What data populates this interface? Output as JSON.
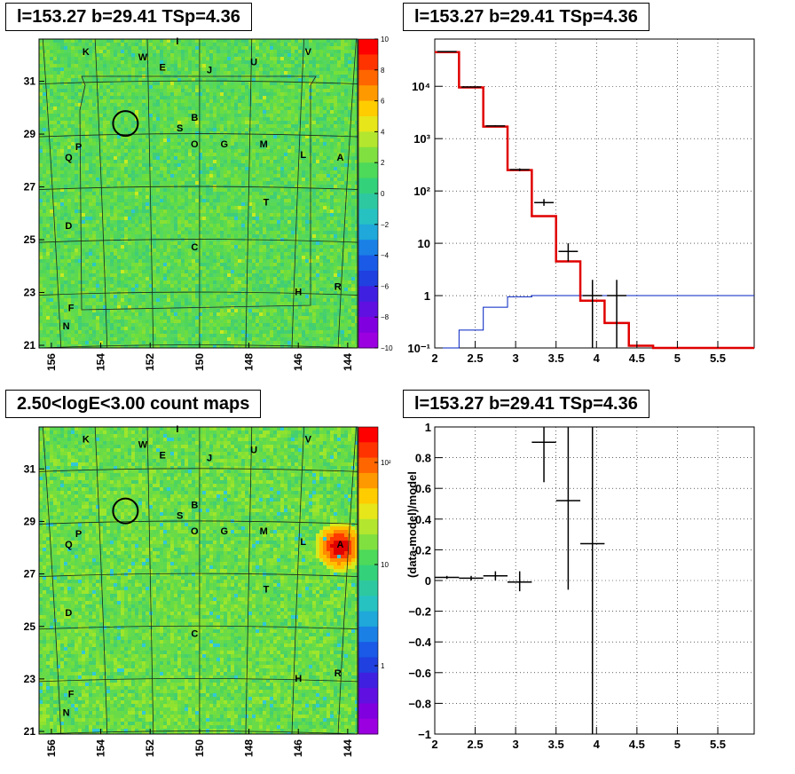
{
  "panels": {
    "tl_title": "l=153.27 b=29.41 TSp=4.36",
    "tr_title": "l=153.27 b=29.41 TSp=4.36",
    "bl_title": "2.50<logE<3.00 count maps",
    "br_title": "l=153.27 b=29.41 TSp=4.36"
  },
  "colors": {
    "model_line": "#e00000",
    "background_line": "#0020c0",
    "data_points": "#000000",
    "map_base": "#5cd94a"
  },
  "chart_data": [
    {
      "type": "heatmap",
      "name": "tl-residual-map",
      "x_ticks": [
        "156",
        "154",
        "152",
        "150",
        "148",
        "146",
        "144"
      ],
      "y_ticks": [
        "31",
        "29",
        "27",
        "25",
        "23",
        "21"
      ],
      "xlim": [
        156.5,
        143.6
      ],
      "ylim": [
        20.9,
        32.6
      ],
      "colorbar_ticks": [
        "10",
        "8",
        "6",
        "4",
        "2",
        "0",
        "−2",
        "−4",
        "−6",
        "−8",
        "−10"
      ],
      "colorbar_range": [
        -10,
        10
      ],
      "sources": [
        {
          "label": "I",
          "l": 150.9,
          "b": 32.4
        },
        {
          "label": "K",
          "l": 154.6,
          "b": 32.0
        },
        {
          "label": "W",
          "l": 152.3,
          "b": 31.8
        },
        {
          "label": "V",
          "l": 145.6,
          "b": 32.0
        },
        {
          "label": "E",
          "l": 151.5,
          "b": 31.4
        },
        {
          "label": "U",
          "l": 147.8,
          "b": 31.6
        },
        {
          "label": "J",
          "l": 149.6,
          "b": 31.3
        },
        {
          "label": "B",
          "l": 150.2,
          "b": 29.5
        },
        {
          "label": "S",
          "l": 150.8,
          "b": 29.1
        },
        {
          "label": "O",
          "l": 150.2,
          "b": 28.5
        },
        {
          "label": "G",
          "l": 149.0,
          "b": 28.5
        },
        {
          "label": "M",
          "l": 147.4,
          "b": 28.5
        },
        {
          "label": "P",
          "l": 154.9,
          "b": 28.4
        },
        {
          "label": "L",
          "l": 145.8,
          "b": 28.1
        },
        {
          "label": "A",
          "l": 144.3,
          "b": 28.0
        },
        {
          "label": "Q",
          "l": 155.3,
          "b": 28.0
        },
        {
          "label": "T",
          "l": 147.3,
          "b": 26.3
        },
        {
          "label": "D",
          "l": 155.3,
          "b": 25.4
        },
        {
          "label": "C",
          "l": 150.2,
          "b": 24.6
        },
        {
          "label": "H",
          "l": 146.0,
          "b": 22.9
        },
        {
          "label": "R",
          "l": 144.4,
          "b": 23.1
        },
        {
          "label": "F",
          "l": 155.2,
          "b": 22.3
        },
        {
          "label": "N",
          "l": 155.4,
          "b": 21.6
        }
      ],
      "roi_circle": {
        "l": 153.0,
        "b": 29.4
      }
    },
    {
      "type": "line",
      "name": "tr-count-spectrum",
      "x_ticks": [
        "2",
        "2.5",
        "3",
        "3.5",
        "4",
        "4.5",
        "5",
        "5.5"
      ],
      "y_ticks": [
        "10⁻¹",
        "1",
        "10",
        "10²",
        "10³",
        "10⁴"
      ],
      "xlim": [
        2,
        5.95
      ],
      "ylim": [
        0.1,
        80000
      ],
      "log_y": true,
      "grid": true,
      "bin_edges": [
        2.0,
        2.3,
        2.6,
        2.9,
        3.2,
        3.5,
        3.8,
        4.1,
        4.4,
        4.7,
        5.0,
        5.3,
        5.6,
        5.95
      ],
      "model": [
        45000,
        9500,
        1700,
        250,
        33,
        4.5,
        0.8,
        0.3,
        0.11,
        0.1,
        0.1,
        0.1,
        0.1
      ],
      "background": [
        0.1,
        0.22,
        0.6,
        0.95,
        1.0,
        1.0,
        1.0,
        1.0,
        1.0,
        1.0,
        1.0,
        1.0,
        1.0
      ],
      "data": [
        {
          "x": 2.15,
          "y": 46000,
          "lo": 45000,
          "hi": 47000
        },
        {
          "x": 2.45,
          "y": 9700,
          "lo": 9500,
          "hi": 9900
        },
        {
          "x": 2.75,
          "y": 1750,
          "lo": 1700,
          "hi": 1800
        },
        {
          "x": 3.05,
          "y": 255,
          "lo": 240,
          "hi": 270
        },
        {
          "x": 3.35,
          "y": 60,
          "lo": 52,
          "hi": 70
        },
        {
          "x": 3.65,
          "y": 7,
          "lo": 4.5,
          "hi": 10
        },
        {
          "x": 3.95,
          "y": 1,
          "lo": 0.1,
          "hi": 2
        },
        {
          "x": 4.25,
          "y": 1,
          "lo": 0.1,
          "hi": 2
        }
      ]
    },
    {
      "type": "heatmap",
      "name": "bl-count-map",
      "x_ticks": [
        "156",
        "154",
        "152",
        "150",
        "148",
        "146",
        "144"
      ],
      "y_ticks": [
        "31",
        "29",
        "27",
        "25",
        "23",
        "21"
      ],
      "xlim": [
        156.5,
        143.6
      ],
      "ylim": [
        20.9,
        32.6
      ],
      "colorbar_ticks": [
        "10²",
        "10",
        "1"
      ],
      "colorbar_log": true,
      "hotspot": {
        "l": 144.4,
        "b": 28.1
      },
      "roi_circle": {
        "l": 153.0,
        "b": 29.4
      }
    },
    {
      "type": "scatter",
      "name": "br-residual-ratio",
      "ylabel": "(data-model)/model",
      "x_ticks": [
        "2",
        "2.5",
        "3",
        "3.5",
        "4",
        "4.5",
        "5",
        "5.5"
      ],
      "y_ticks": [
        "1",
        "0.8",
        "0.6",
        "0.4",
        "0.2",
        "0",
        "−0.2",
        "−0.4",
        "−0.6",
        "−0.8",
        "−1"
      ],
      "xlim": [
        2,
        5.95
      ],
      "ylim": [
        -1,
        1
      ],
      "grid": true,
      "points": [
        {
          "x": 2.15,
          "y": 0.02,
          "lo": 0.01,
          "hi": 0.03,
          "xw": 0.15
        },
        {
          "x": 2.45,
          "y": 0.015,
          "lo": 0.0,
          "hi": 0.03,
          "xw": 0.15
        },
        {
          "x": 2.75,
          "y": 0.03,
          "lo": 0.0,
          "hi": 0.06,
          "xw": 0.15
        },
        {
          "x": 3.05,
          "y": -0.01,
          "lo": -0.07,
          "hi": 0.06,
          "xw": 0.15
        },
        {
          "x": 3.35,
          "y": 0.9,
          "lo": 0.64,
          "hi": 1.0,
          "xw": 0.15
        },
        {
          "x": 3.65,
          "y": 0.52,
          "lo": -0.06,
          "hi": 1.0,
          "xw": 0.15
        },
        {
          "x": 3.95,
          "y": 0.24,
          "lo": -1.0,
          "hi": 1.0,
          "xw": 0.15
        }
      ]
    }
  ]
}
